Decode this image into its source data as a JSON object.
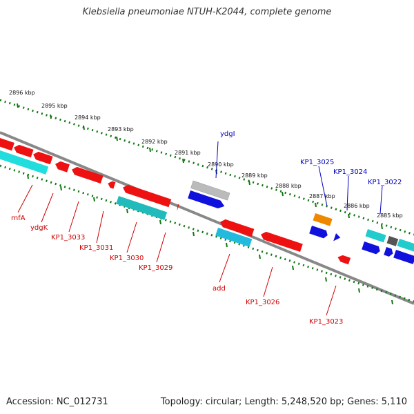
{
  "title": "Klebsiella pneumoniae NTUH-K2044, complete genome",
  "footer": {
    "accession": "Accession: NC_012731",
    "summary": "Topology: circular; Length: 5,248,520 bp; Genes: 5,110"
  },
  "scale_labels": [
    "2896 kbp",
    "2895 kbp",
    "2894 kbp",
    "2893 kbp",
    "2892 kbp",
    "2891 kbp",
    "2890 kbp",
    "2889 kbp",
    "2888 kbp",
    "2887 kbp",
    "2886 kbp",
    "2885 kbp"
  ],
  "colors": {
    "red_gene": "#ee1111",
    "cyan_gene": "#22cccc",
    "blue_gene": "#1111dd",
    "grey_gene": "#bbbbbb",
    "orange_gene": "#ee8800",
    "dark_gene": "#555555",
    "backbone": "#888888",
    "tick": "#117711",
    "red_label": "#cc0000",
    "blue_label": "#0000bb"
  },
  "gene_labels_forward": [
    "ydgI",
    "KP1_3025",
    "KP1_3024",
    "KP1_3022"
  ],
  "gene_labels_reverse": [
    "rnfA",
    "ydgK",
    "KP1_3033",
    "KP1_3031",
    "KP1_3030",
    "KP1_3029",
    "add",
    "KP1_3026",
    "KP1_3023"
  ]
}
